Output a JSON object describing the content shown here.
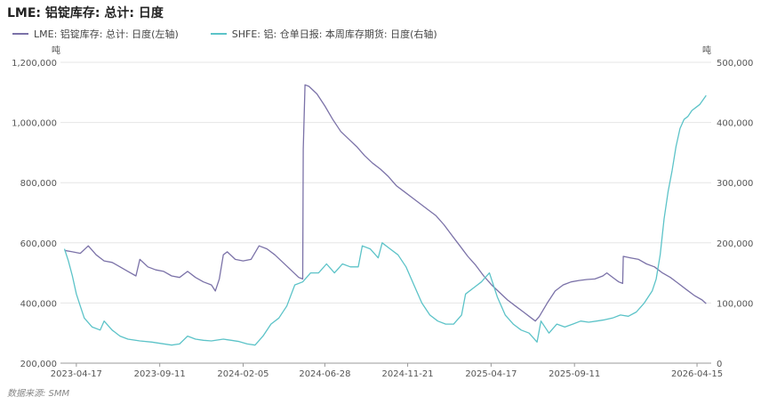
{
  "title": "LME: 铝锭库存: 总计: 日度",
  "source": "数据来源: SMM",
  "colors": {
    "lme": "#7b72a8",
    "shfe": "#5cc3c8",
    "grid": "#e6e6e6",
    "axis": "#999999"
  },
  "chart_data": {
    "type": "line",
    "left_unit": "吨",
    "right_unit": "吨",
    "xlim": [
      "2023-03-20",
      "2026-05-10"
    ],
    "x_ticks": [
      "2023-04-17",
      "2023-09-11",
      "2024-02-05",
      "2024-06-28",
      "2024-11-21",
      "2025-04-17",
      "2025-09-11",
      "2026-04-15"
    ],
    "y_left": {
      "ylim": [
        200000,
        1200000
      ],
      "ticks": [
        200000,
        400000,
        600000,
        800000,
        1000000,
        1200000
      ],
      "tick_labels": [
        "200,000",
        "400,000",
        "600,000",
        "800,000",
        "1,000,000",
        "1,200,000"
      ]
    },
    "y_right": {
      "ylim": [
        0,
        500000
      ],
      "ticks": [
        0,
        100000,
        200000,
        300000,
        400000,
        500000
      ],
      "tick_labels": [
        "0",
        "100,000",
        "200,000",
        "300,000",
        "400,000",
        "500,000"
      ]
    },
    "series": [
      {
        "name": "LME: 铝锭库存: 总计: 日度(左轴)",
        "axis": "left",
        "points": [
          [
            "2023-03-27",
            575000
          ],
          [
            "2023-04-10",
            570000
          ],
          [
            "2023-04-24",
            565000
          ],
          [
            "2023-05-08",
            590000
          ],
          [
            "2023-05-22",
            560000
          ],
          [
            "2023-06-05",
            540000
          ],
          [
            "2023-06-19",
            535000
          ],
          [
            "2023-07-03",
            520000
          ],
          [
            "2023-07-17",
            505000
          ],
          [
            "2023-07-31",
            490000
          ],
          [
            "2023-08-07",
            545000
          ],
          [
            "2023-08-21",
            520000
          ],
          [
            "2023-09-04",
            510000
          ],
          [
            "2023-09-18",
            505000
          ],
          [
            "2023-10-02",
            490000
          ],
          [
            "2023-10-16",
            485000
          ],
          [
            "2023-10-30",
            505000
          ],
          [
            "2023-11-13",
            485000
          ],
          [
            "2023-11-27",
            470000
          ],
          [
            "2023-12-11",
            460000
          ],
          [
            "2023-12-18",
            440000
          ],
          [
            "2023-12-25",
            480000
          ],
          [
            "2024-01-01",
            560000
          ],
          [
            "2024-01-08",
            570000
          ],
          [
            "2024-01-22",
            545000
          ],
          [
            "2024-02-05",
            540000
          ],
          [
            "2024-02-19",
            545000
          ],
          [
            "2024-03-04",
            590000
          ],
          [
            "2024-03-18",
            580000
          ],
          [
            "2024-04-01",
            560000
          ],
          [
            "2024-04-15",
            535000
          ],
          [
            "2024-04-29",
            510000
          ],
          [
            "2024-05-13",
            485000
          ],
          [
            "2024-05-20",
            480000
          ],
          [
            "2024-05-21",
            910000
          ],
          [
            "2024-05-24",
            1125000
          ],
          [
            "2024-05-31",
            1120000
          ],
          [
            "2024-06-14",
            1095000
          ],
          [
            "2024-06-28",
            1055000
          ],
          [
            "2024-07-12",
            1010000
          ],
          [
            "2024-07-26",
            970000
          ],
          [
            "2024-08-09",
            945000
          ],
          [
            "2024-08-23",
            920000
          ],
          [
            "2024-09-06",
            890000
          ],
          [
            "2024-09-20",
            865000
          ],
          [
            "2024-10-04",
            845000
          ],
          [
            "2024-10-18",
            820000
          ],
          [
            "2024-11-01",
            790000
          ],
          [
            "2024-11-15",
            770000
          ],
          [
            "2024-11-29",
            750000
          ],
          [
            "2024-12-13",
            730000
          ],
          [
            "2024-12-27",
            710000
          ],
          [
            "2025-01-10",
            690000
          ],
          [
            "2025-01-24",
            660000
          ],
          [
            "2025-02-07",
            625000
          ],
          [
            "2025-02-21",
            590000
          ],
          [
            "2025-03-07",
            555000
          ],
          [
            "2025-03-21",
            525000
          ],
          [
            "2025-04-04",
            490000
          ],
          [
            "2025-04-18",
            460000
          ],
          [
            "2025-05-02",
            435000
          ],
          [
            "2025-05-16",
            410000
          ],
          [
            "2025-05-30",
            390000
          ],
          [
            "2025-06-13",
            370000
          ],
          [
            "2025-06-27",
            350000
          ],
          [
            "2025-07-04",
            340000
          ],
          [
            "2025-07-11",
            355000
          ],
          [
            "2025-07-25",
            400000
          ],
          [
            "2025-08-08",
            440000
          ],
          [
            "2025-08-22",
            460000
          ],
          [
            "2025-09-05",
            470000
          ],
          [
            "2025-09-19",
            475000
          ],
          [
            "2025-10-03",
            478000
          ],
          [
            "2025-10-17",
            480000
          ],
          [
            "2025-10-31",
            490000
          ],
          [
            "2025-11-07",
            500000
          ],
          [
            "2025-11-14",
            490000
          ],
          [
            "2025-11-21",
            480000
          ],
          [
            "2025-11-28",
            470000
          ],
          [
            "2025-12-05",
            465000
          ],
          [
            "2025-12-06",
            555000
          ],
          [
            "2025-12-19",
            550000
          ],
          [
            "2026-01-02",
            545000
          ],
          [
            "2026-01-16",
            530000
          ],
          [
            "2026-01-30",
            520000
          ],
          [
            "2026-02-13",
            500000
          ],
          [
            "2026-02-27",
            485000
          ],
          [
            "2026-03-13",
            465000
          ],
          [
            "2026-03-27",
            445000
          ],
          [
            "2026-04-10",
            425000
          ],
          [
            "2026-04-24",
            410000
          ],
          [
            "2026-05-01",
            398000
          ]
        ]
      },
      {
        "name": "SHFE: 铝: 仓单日报: 本周库存期货: 日度(右轴)",
        "axis": "right",
        "points": [
          [
            "2023-03-27",
            190000
          ],
          [
            "2023-04-03",
            170000
          ],
          [
            "2023-04-10",
            145000
          ],
          [
            "2023-04-17",
            115000
          ],
          [
            "2023-04-24",
            95000
          ],
          [
            "2023-05-01",
            75000
          ],
          [
            "2023-05-15",
            60000
          ],
          [
            "2023-05-29",
            55000
          ],
          [
            "2023-06-05",
            70000
          ],
          [
            "2023-06-19",
            55000
          ],
          [
            "2023-07-03",
            45000
          ],
          [
            "2023-07-17",
            40000
          ],
          [
            "2023-08-07",
            37000
          ],
          [
            "2023-08-28",
            35000
          ],
          [
            "2023-09-11",
            33000
          ],
          [
            "2023-10-02",
            30000
          ],
          [
            "2023-10-16",
            32000
          ],
          [
            "2023-10-30",
            45000
          ],
          [
            "2023-11-13",
            40000
          ],
          [
            "2023-11-27",
            38000
          ],
          [
            "2023-12-11",
            37000
          ],
          [
            "2024-01-01",
            40000
          ],
          [
            "2024-01-15",
            38000
          ],
          [
            "2024-01-29",
            36000
          ],
          [
            "2024-02-12",
            32000
          ],
          [
            "2024-02-26",
            30000
          ],
          [
            "2024-03-11",
            45000
          ],
          [
            "2024-03-25",
            65000
          ],
          [
            "2024-04-08",
            75000
          ],
          [
            "2024-04-22",
            95000
          ],
          [
            "2024-05-06",
            130000
          ],
          [
            "2024-05-20",
            135000
          ],
          [
            "2024-06-03",
            150000
          ],
          [
            "2024-06-17",
            150000
          ],
          [
            "2024-07-01",
            165000
          ],
          [
            "2024-07-15",
            150000
          ],
          [
            "2024-07-29",
            165000
          ],
          [
            "2024-08-12",
            160000
          ],
          [
            "2024-08-26",
            160000
          ],
          [
            "2024-09-02",
            195000
          ],
          [
            "2024-09-16",
            190000
          ],
          [
            "2024-09-30",
            175000
          ],
          [
            "2024-10-07",
            200000
          ],
          [
            "2024-10-21",
            190000
          ],
          [
            "2024-11-04",
            180000
          ],
          [
            "2024-11-18",
            160000
          ],
          [
            "2024-12-02",
            130000
          ],
          [
            "2024-12-16",
            100000
          ],
          [
            "2024-12-30",
            80000
          ],
          [
            "2025-01-13",
            70000
          ],
          [
            "2025-01-27",
            65000
          ],
          [
            "2025-02-10",
            65000
          ],
          [
            "2025-02-24",
            80000
          ],
          [
            "2025-03-03",
            115000
          ],
          [
            "2025-03-17",
            125000
          ],
          [
            "2025-03-31",
            135000
          ],
          [
            "2025-04-14",
            150000
          ],
          [
            "2025-04-28",
            110000
          ],
          [
            "2025-05-12",
            80000
          ],
          [
            "2025-05-26",
            65000
          ],
          [
            "2025-06-09",
            55000
          ],
          [
            "2025-06-23",
            50000
          ],
          [
            "2025-07-07",
            35000
          ],
          [
            "2025-07-14",
            70000
          ],
          [
            "2025-07-28",
            50000
          ],
          [
            "2025-08-11",
            65000
          ],
          [
            "2025-08-25",
            60000
          ],
          [
            "2025-09-08",
            65000
          ],
          [
            "2025-09-22",
            70000
          ],
          [
            "2025-10-06",
            68000
          ],
          [
            "2025-10-20",
            70000
          ],
          [
            "2025-11-03",
            72000
          ],
          [
            "2025-11-17",
            75000
          ],
          [
            "2025-12-01",
            80000
          ],
          [
            "2025-12-15",
            78000
          ],
          [
            "2025-12-29",
            85000
          ],
          [
            "2026-01-12",
            100000
          ],
          [
            "2026-01-26",
            120000
          ],
          [
            "2026-02-02",
            140000
          ],
          [
            "2026-02-09",
            180000
          ],
          [
            "2026-02-16",
            240000
          ],
          [
            "2026-02-23",
            285000
          ],
          [
            "2026-03-02",
            320000
          ],
          [
            "2026-03-09",
            360000
          ],
          [
            "2026-03-16",
            390000
          ],
          [
            "2026-03-23",
            405000
          ],
          [
            "2026-03-30",
            410000
          ],
          [
            "2026-04-06",
            420000
          ],
          [
            "2026-04-13",
            425000
          ],
          [
            "2026-04-20",
            430000
          ],
          [
            "2026-05-01",
            445000
          ]
        ]
      }
    ]
  }
}
